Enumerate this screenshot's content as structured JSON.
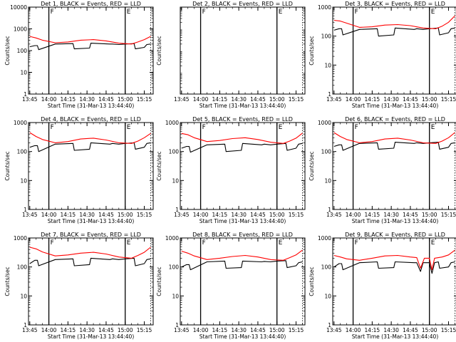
{
  "window": {
    "background": "#ffffff"
  },
  "colors": {
    "events": "#000000",
    "lld": "#ff0000",
    "axes": "#000000"
  },
  "chart_data": [
    {
      "type": "line",
      "panel": "det1",
      "title": "Det 1, BLACK = Events, RED = LLD",
      "xlabel": "Start Time (31-Mar-13 13:44:40)",
      "ylabel": "Counts/sec",
      "x_ticks": [
        "13:45",
        "14:00",
        "14:15",
        "14:30",
        "14:45",
        "15:00",
        "15:15"
      ],
      "y_ticks": [
        "1",
        "10",
        "100",
        "1000",
        "10000"
      ],
      "ylim": [
        1,
        10000
      ],
      "y_scale": "log",
      "vlines": [
        {
          "x": "14:00",
          "label": "F"
        },
        {
          "x": "15:00",
          "label": "E"
        },
        {
          "x": "15:20",
          "label": ""
        }
      ],
      "series": [
        {
          "name": "Events",
          "color": "#000000",
          "x": [
            "13:45",
            "13:49",
            "13:51",
            "13:52",
            "14:05",
            "14:19",
            "14:20",
            "14:32",
            "14:33",
            "14:48",
            "14:50",
            "14:55",
            "15:00",
            "15:07",
            "15:08",
            "15:15",
            "15:17",
            "15:20"
          ],
          "y": [
            150,
            170,
            170,
            110,
            200,
            210,
            120,
            130,
            220,
            200,
            200,
            190,
            200,
            210,
            120,
            140,
            190,
            200
          ]
        },
        {
          "name": "LLD",
          "color": "#ff0000",
          "x": [
            "13:45",
            "13:50",
            "13:55",
            "14:05",
            "14:15",
            "14:25",
            "14:35",
            "14:45",
            "14:55",
            "15:05",
            "15:10",
            "15:15",
            "15:20"
          ],
          "y": [
            450,
            380,
            300,
            230,
            250,
            300,
            320,
            280,
            220,
            200,
            250,
            320,
            450
          ]
        }
      ]
    },
    {
      "type": "line",
      "panel": "det2",
      "title": "Det 2, BLACK = Events, RED = LLD",
      "xlabel": "Start Time (31-Mar-13 13:44:40)",
      "ylabel": "Counts/sec",
      "x_ticks": [
        "13:45",
        "14:00",
        "14:15",
        "14:30",
        "14:45",
        "15:00",
        "15:15"
      ],
      "y_ticks": [],
      "ylim": [
        1,
        10000
      ],
      "y_scale": "log",
      "vlines": [
        {
          "x": "14:00",
          "label": "F"
        },
        {
          "x": "15:00",
          "label": "E"
        },
        {
          "x": "15:20",
          "label": ""
        }
      ],
      "series": []
    },
    {
      "type": "line",
      "panel": "det3",
      "title": "Det 3, BLACK = Events, RED = LLD",
      "xlabel": "Start Time (31-Mar-13 13:44:40)",
      "ylabel": "Counts/sec",
      "x_ticks": [
        "13:45",
        "14:00",
        "14:15",
        "14:30",
        "14:45",
        "15:00",
        "15:15"
      ],
      "y_ticks": [
        "1",
        "10",
        "100",
        "1000"
      ],
      "ylim": [
        1,
        1000
      ],
      "y_scale": "log",
      "vlines": [
        {
          "x": "14:00",
          "label": "F"
        },
        {
          "x": "15:00",
          "label": "E"
        },
        {
          "x": "15:20",
          "label": ""
        }
      ],
      "series": [
        {
          "name": "Events",
          "color": "#000000",
          "x": [
            "13:45",
            "13:49",
            "13:51",
            "13:52",
            "14:05",
            "14:19",
            "14:20",
            "14:32",
            "14:33",
            "14:48",
            "14:50",
            "14:55",
            "15:00",
            "15:07",
            "15:08",
            "15:15",
            "15:17",
            "15:20"
          ],
          "y": [
            160,
            180,
            180,
            110,
            170,
            180,
            100,
            110,
            190,
            170,
            180,
            170,
            180,
            190,
            110,
            130,
            180,
            190
          ]
        },
        {
          "name": "LLD",
          "color": "#ff0000",
          "x": [
            "13:45",
            "13:50",
            "13:55",
            "14:05",
            "14:15",
            "14:25",
            "14:35",
            "14:45",
            "14:55",
            "15:05",
            "15:10",
            "15:15",
            "15:20"
          ],
          "y": [
            350,
            330,
            280,
            200,
            210,
            240,
            250,
            230,
            190,
            180,
            220,
            300,
            500
          ]
        }
      ]
    },
    {
      "type": "line",
      "panel": "det4",
      "title": "Det 4, BLACK = Events, RED = LLD",
      "xlabel": "Start Time (31-Mar-13 13:44:40)",
      "ylabel": "Counts/sec",
      "x_ticks": [
        "13:45",
        "14:00",
        "14:15",
        "14:30",
        "14:45",
        "15:00",
        "15:15"
      ],
      "y_ticks": [
        "1",
        "10",
        "100",
        "1000"
      ],
      "ylim": [
        1,
        1000
      ],
      "y_scale": "log",
      "vlines": [
        {
          "x": "14:00",
          "label": "F"
        },
        {
          "x": "15:00",
          "label": "E"
        },
        {
          "x": "15:20",
          "label": ""
        }
      ],
      "series": [
        {
          "name": "Events",
          "color": "#000000",
          "x": [
            "13:45",
            "13:49",
            "13:51",
            "13:52",
            "14:05",
            "14:19",
            "14:20",
            "14:32",
            "14:33",
            "14:48",
            "14:50",
            "14:55",
            "15:00",
            "15:07",
            "15:08",
            "15:15",
            "15:17",
            "15:20"
          ],
          "y": [
            140,
            160,
            160,
            100,
            180,
            190,
            110,
            120,
            200,
            180,
            190,
            180,
            190,
            200,
            120,
            140,
            190,
            200
          ]
        },
        {
          "name": "LLD",
          "color": "#ff0000",
          "x": [
            "13:45",
            "13:50",
            "13:55",
            "14:05",
            "14:15",
            "14:25",
            "14:35",
            "14:45",
            "14:55",
            "15:05",
            "15:10",
            "15:15",
            "15:20"
          ],
          "y": [
            450,
            330,
            260,
            200,
            220,
            270,
            290,
            250,
            200,
            190,
            230,
            300,
            420
          ]
        }
      ]
    },
    {
      "type": "line",
      "panel": "det5",
      "title": "Det 5, BLACK = Events, RED = LLD",
      "xlabel": "Start Time (31-Mar-13 13:44:40)",
      "ylabel": "Counts/sec",
      "x_ticks": [
        "13:45",
        "14:00",
        "14:15",
        "14:30",
        "14:45",
        "15:00",
        "15:15"
      ],
      "y_ticks": [
        "1",
        "10",
        "100",
        "1000"
      ],
      "ylim": [
        1,
        1000
      ],
      "y_scale": "log",
      "vlines": [
        {
          "x": "14:00",
          "label": "F"
        },
        {
          "x": "15:00",
          "label": "E"
        },
        {
          "x": "15:20",
          "label": ""
        }
      ],
      "series": [
        {
          "name": "Events",
          "color": "#000000",
          "x": [
            "13:45",
            "13:49",
            "13:51",
            "13:52",
            "14:05",
            "14:19",
            "14:20",
            "14:32",
            "14:33",
            "14:48",
            "14:50",
            "14:55",
            "15:00",
            "15:07",
            "15:08",
            "15:15",
            "15:17",
            "15:20"
          ],
          "y": [
            130,
            150,
            150,
            95,
            170,
            180,
            100,
            110,
            190,
            170,
            180,
            170,
            180,
            190,
            110,
            130,
            180,
            190
          ]
        },
        {
          "name": "LLD",
          "color": "#ff0000",
          "x": [
            "13:45",
            "13:50",
            "13:55",
            "14:05",
            "14:15",
            "14:25",
            "14:35",
            "14:45",
            "14:55",
            "15:05",
            "15:10",
            "15:15",
            "15:20"
          ],
          "y": [
            420,
            380,
            300,
            220,
            240,
            280,
            300,
            260,
            210,
            190,
            230,
            290,
            430
          ]
        }
      ]
    },
    {
      "type": "line",
      "panel": "det6",
      "title": "Det 6, BLACK = Events, RED = LLD",
      "xlabel": "Start Time (31-Mar-13 13:44:40)",
      "ylabel": "Counts/sec",
      "x_ticks": [
        "13:45",
        "14:00",
        "14:15",
        "14:30",
        "14:45",
        "15:00",
        "15:15"
      ],
      "y_ticks": [
        "1",
        "10",
        "100",
        "1000"
      ],
      "ylim": [
        1,
        1000
      ],
      "y_scale": "log",
      "vlines": [
        {
          "x": "14:00",
          "label": "F"
        },
        {
          "x": "15:00",
          "label": "E"
        },
        {
          "x": "15:20",
          "label": ""
        }
      ],
      "series": [
        {
          "name": "Events",
          "color": "#000000",
          "x": [
            "13:45",
            "13:49",
            "13:51",
            "13:52",
            "14:05",
            "14:19",
            "14:20",
            "14:32",
            "14:33",
            "14:48",
            "14:50",
            "14:55",
            "15:00",
            "15:07",
            "15:08",
            "15:15",
            "15:17",
            "15:20"
          ],
          "y": [
            150,
            170,
            170,
            110,
            190,
            200,
            120,
            130,
            210,
            190,
            200,
            190,
            200,
            210,
            120,
            140,
            190,
            200
          ]
        },
        {
          "name": "LLD",
          "color": "#ff0000",
          "x": [
            "13:45",
            "13:50",
            "13:55",
            "14:05",
            "14:15",
            "14:25",
            "14:35",
            "14:45",
            "14:55",
            "15:05",
            "15:10",
            "15:15",
            "15:20"
          ],
          "y": [
            450,
            330,
            260,
            200,
            220,
            270,
            290,
            250,
            200,
            190,
            230,
            300,
            450
          ]
        }
      ]
    },
    {
      "type": "line",
      "panel": "det7",
      "title": "Det 7, BLACK = Events, RED = LLD",
      "xlabel": "Start Time (31-Mar-13 13:44:40)",
      "ylabel": "Counts/sec",
      "x_ticks": [
        "13:45",
        "14:00",
        "14:15",
        "14:30",
        "14:45",
        "15:00",
        "15:15"
      ],
      "y_ticks": [
        "1",
        "10",
        "100",
        "1000"
      ],
      "ylim": [
        1,
        1000
      ],
      "y_scale": "log",
      "vlines": [
        {
          "x": "14:00",
          "label": "F"
        },
        {
          "x": "15:00",
          "label": "E"
        },
        {
          "x": "15:20",
          "label": ""
        }
      ],
      "series": [
        {
          "name": "Events",
          "color": "#000000",
          "x": [
            "13:45",
            "13:49",
            "13:51",
            "13:52",
            "14:05",
            "14:19",
            "14:20",
            "14:32",
            "14:33",
            "14:48",
            "14:50",
            "14:55",
            "15:00",
            "15:07",
            "15:08",
            "15:15",
            "15:17",
            "15:20"
          ],
          "y": [
            130,
            170,
            170,
            110,
            180,
            190,
            110,
            120,
            200,
            180,
            190,
            180,
            190,
            200,
            110,
            130,
            180,
            190
          ]
        },
        {
          "name": "LLD",
          "color": "#ff0000",
          "x": [
            "13:45",
            "13:50",
            "13:55",
            "14:05",
            "14:15",
            "14:25",
            "14:35",
            "14:45",
            "14:55",
            "15:05",
            "15:10",
            "15:15",
            "15:20"
          ],
          "y": [
            480,
            420,
            330,
            240,
            260,
            300,
            320,
            280,
            220,
            200,
            250,
            320,
            480
          ]
        }
      ]
    },
    {
      "type": "line",
      "panel": "det8",
      "title": "Det 8, BLACK = Events, RED = LLD",
      "xlabel": "Start Time (31-Mar-13 13:44:40)",
      "ylabel": "Counts/sec",
      "x_ticks": [
        "13:45",
        "14:00",
        "14:15",
        "14:30",
        "14:45",
        "15:00",
        "15:15"
      ],
      "y_ticks": [
        "1",
        "10",
        "100",
        "1000"
      ],
      "ylim": [
        1,
        1000
      ],
      "y_scale": "log",
      "vlines": [
        {
          "x": "14:00",
          "label": "F"
        },
        {
          "x": "15:00",
          "label": "E"
        },
        {
          "x": "15:20",
          "label": ""
        }
      ],
      "series": [
        {
          "name": "Events",
          "color": "#000000",
          "x": [
            "13:45",
            "13:49",
            "13:51",
            "13:52",
            "14:05",
            "14:19",
            "14:20",
            "14:32",
            "14:33",
            "14:48",
            "14:50",
            "14:55",
            "15:00",
            "15:07",
            "15:08",
            "15:15",
            "15:17",
            "15:20"
          ],
          "y": [
            100,
            120,
            120,
            80,
            150,
            160,
            90,
            95,
            160,
            150,
            155,
            150,
            160,
            165,
            95,
            110,
            140,
            150
          ]
        },
        {
          "name": "LLD",
          "color": "#ff0000",
          "x": [
            "13:45",
            "13:50",
            "13:55",
            "14:05",
            "14:15",
            "14:25",
            "14:35",
            "14:45",
            "14:55",
            "15:05",
            "15:10",
            "15:15",
            "15:20"
          ],
          "y": [
            350,
            300,
            240,
            180,
            200,
            230,
            250,
            220,
            180,
            170,
            210,
            260,
            380
          ]
        }
      ]
    },
    {
      "type": "line",
      "panel": "det9",
      "title": "Det 9, BLACK = Events, RED = LLD",
      "xlabel": "Start Time (31-Mar-13 13:44:40)",
      "ylabel": "Counts/sec",
      "x_ticks": [
        "13:45",
        "14:00",
        "14:15",
        "14:30",
        "14:45",
        "15:00",
        "15:15"
      ],
      "y_ticks": [
        "1",
        "10",
        "100",
        "1000"
      ],
      "ylim": [
        1,
        1000
      ],
      "y_scale": "log",
      "vlines": [
        {
          "x": "14:00",
          "label": "F"
        },
        {
          "x": "15:00",
          "label": "E"
        },
        {
          "x": "15:20",
          "label": ""
        }
      ],
      "series": [
        {
          "name": "Events",
          "color": "#000000",
          "x": [
            "13:45",
            "13:49",
            "13:51",
            "13:52",
            "14:05",
            "14:19",
            "14:20",
            "14:32",
            "14:33",
            "14:48",
            "14:50",
            "14:53",
            "14:55",
            "14:57",
            "15:00",
            "15:02",
            "15:04",
            "15:07",
            "15:08",
            "15:15",
            "15:17",
            "15:20"
          ],
          "y": [
            100,
            130,
            130,
            80,
            140,
            150,
            90,
            95,
            150,
            140,
            140,
            70,
            140,
            140,
            140,
            60,
            140,
            150,
            90,
            100,
            140,
            150
          ]
        },
        {
          "name": "LLD",
          "color": "#ff0000",
          "x": [
            "13:45",
            "13:50",
            "13:55",
            "14:05",
            "14:15",
            "14:25",
            "14:35",
            "14:45",
            "14:50",
            "14:53",
            "14:56",
            "15:00",
            "15:02",
            "15:04",
            "15:10",
            "15:15",
            "15:20"
          ],
          "y": [
            250,
            220,
            190,
            170,
            200,
            240,
            250,
            220,
            210,
            90,
            200,
            200,
            80,
            200,
            220,
            260,
            380
          ]
        }
      ]
    }
  ]
}
